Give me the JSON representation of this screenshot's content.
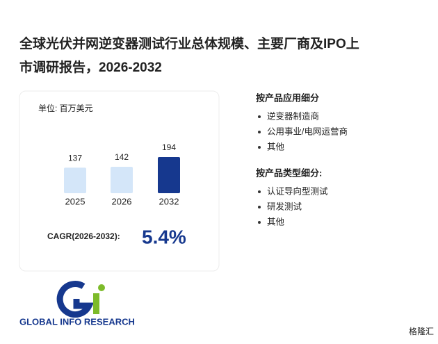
{
  "title_lines": [
    "全球光伏并网逆变器测试行业总体规模、主要厂商及IPO上",
    "市调研报告，2026-2032"
  ],
  "chart_data": {
    "type": "bar",
    "unit": "单位: 百万美元",
    "categories": [
      "2025",
      "2026",
      "2032"
    ],
    "values": [
      137,
      142,
      194
    ],
    "colors": [
      "#d4e6f9",
      "#d4e6f9",
      "#16388e"
    ],
    "cagr_label": "CAGR(2026-2032):",
    "cagr_value": "5.4%"
  },
  "sections": [
    {
      "heading": "按产品应用细分",
      "items": [
        "逆变器制造商",
        "公用事业/电网运营商",
        "其他"
      ]
    },
    {
      "heading": "按产品类型细分:",
      "items": [
        "认证导向型测试",
        "研发测试",
        "其他"
      ]
    }
  ],
  "logo": {
    "text": "GLOBAL INFO RESEARCH"
  },
  "corner_brand": "格隆汇"
}
